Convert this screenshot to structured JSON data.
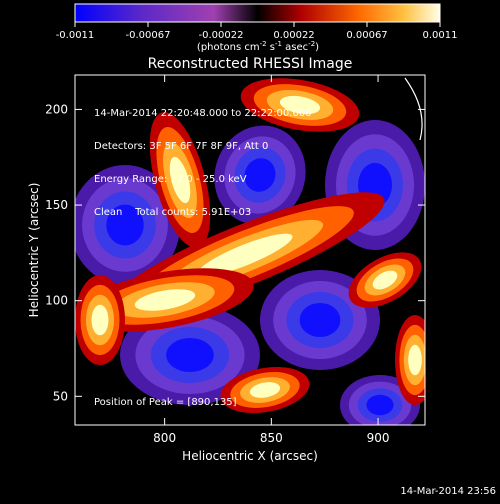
{
  "colorbar": {
    "ticks": [
      "-0.0011",
      "-0.00067",
      "-0.00022",
      "0.00022",
      "0.00067",
      "0.0011"
    ],
    "unit_text": "(photons cm",
    "unit_exp1": "-2",
    "unit_mid": " s",
    "unit_exp2": "-1",
    "unit_mid2": " asec",
    "unit_exp3": "-2",
    "unit_end": ")"
  },
  "plot": {
    "title": "Reconstructed RHESSI Image",
    "xlabel": "Heliocentric X (arcsec)",
    "ylabel": "Heliocentric Y (arcsec)",
    "xticks": [
      "800",
      "850",
      "900"
    ],
    "yticks": [
      "200",
      "150",
      "100",
      "50"
    ],
    "info_lines": [
      "14-Mar-2014 22:20:48.000 to 22:22:00.000",
      "Detectors: 3F 5F 6F 7F 8F 9F, Att 0",
      "Energy Range: 12.0 - 25.0 keV",
      "Clean    Total counts: 5.91E+03"
    ],
    "peak_text": "Position of Peak = [890,135]",
    "footer_time": "14-Mar-2014 23:56"
  },
  "image": {
    "type": "heatmap",
    "x_range": [
      758,
      922
    ],
    "y_range": [
      35,
      218
    ],
    "colormap": [
      "#0000ff",
      "#4a1aa8",
      "#8a2ba0",
      "#000000",
      "#c00000",
      "#ff7000",
      "#ffd040",
      "#ffffe0"
    ],
    "peak_marker": {
      "x": 930,
      "y": 168
    }
  }
}
